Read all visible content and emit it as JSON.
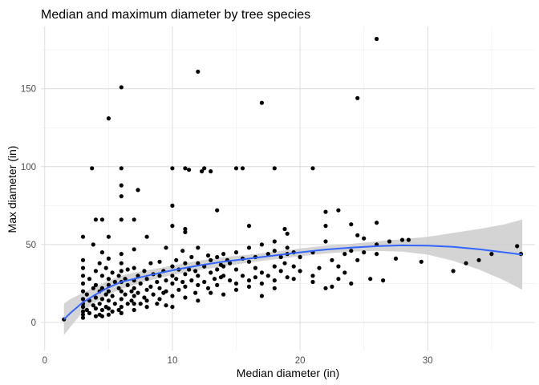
{
  "chart_data": {
    "type": "scatter",
    "title": "Median and maximum diameter by tree species",
    "xlabel": "Median diameter (in)",
    "ylabel": "Max diameter (in)",
    "xlim": [
      -0.3,
      38.4
    ],
    "ylim": [
      -18,
      190
    ],
    "x_ticks": [
      0,
      10,
      20,
      30
    ],
    "y_ticks": [
      0,
      50,
      100,
      150
    ],
    "grid": true,
    "legend": "none",
    "colors": {
      "points": "#000000",
      "smooth_line": "#3366ff",
      "confidence_band": "#cccccc",
      "grid_major": "#dcdcdc",
      "grid_minor": "#ececec"
    },
    "smooth": {
      "method": "loess",
      "x": [
        1.5,
        2,
        3,
        4,
        5,
        6,
        7,
        8,
        10,
        12,
        14,
        16,
        18,
        20,
        22,
        24,
        26,
        28,
        30,
        32,
        34,
        36,
        37.4
      ],
      "y": [
        2,
        6,
        13,
        18,
        22.5,
        26,
        28,
        30,
        33.5,
        36.5,
        39,
        41,
        43,
        45,
        46.8,
        48,
        49,
        49.5,
        49.3,
        48.5,
        47,
        45,
        43.5
      ],
      "ci_lower": [
        -8,
        -3,
        7,
        13,
        18,
        21.5,
        24,
        26.5,
        30.5,
        33.5,
        36,
        38.5,
        40.5,
        42.5,
        44.3,
        45.5,
        46,
        45.5,
        43.5,
        39.5,
        34,
        27,
        21
      ],
      "ci_upper": [
        12,
        15,
        19,
        23,
        27,
        30,
        32,
        33.5,
        36.5,
        39.5,
        42,
        43.5,
        45.5,
        47.5,
        49.3,
        50.5,
        52,
        53.5,
        55,
        57.5,
        60,
        63,
        66
      ]
    },
    "points": [
      {
        "x": 1.5,
        "y": 2
      },
      {
        "x": 3,
        "y": 55
      },
      {
        "x": 3,
        "y": 40
      },
      {
        "x": 3,
        "y": 35
      },
      {
        "x": 3,
        "y": 30
      },
      {
        "x": 3,
        "y": 25
      },
      {
        "x": 3,
        "y": 20
      },
      {
        "x": 3,
        "y": 15
      },
      {
        "x": 3,
        "y": 12
      },
      {
        "x": 3,
        "y": 10
      },
      {
        "x": 3,
        "y": 7
      },
      {
        "x": 3,
        "y": 5
      },
      {
        "x": 3,
        "y": 3
      },
      {
        "x": 3.3,
        "y": 18
      },
      {
        "x": 3.3,
        "y": 8
      },
      {
        "x": 3.5,
        "y": 28
      },
      {
        "x": 3.5,
        "y": 14
      },
      {
        "x": 3.5,
        "y": 6
      },
      {
        "x": 3.7,
        "y": 99
      },
      {
        "x": 3.8,
        "y": 50
      },
      {
        "x": 3.8,
        "y": 22
      },
      {
        "x": 3.8,
        "y": 11
      },
      {
        "x": 4,
        "y": 66
      },
      {
        "x": 4,
        "y": 33
      },
      {
        "x": 4,
        "y": 24
      },
      {
        "x": 4,
        "y": 16
      },
      {
        "x": 4,
        "y": 9
      },
      {
        "x": 4,
        "y": 4
      },
      {
        "x": 4.3,
        "y": 38
      },
      {
        "x": 4.3,
        "y": 20
      },
      {
        "x": 4.3,
        "y": 12
      },
      {
        "x": 4.3,
        "y": 5
      },
      {
        "x": 4.5,
        "y": 66
      },
      {
        "x": 4.5,
        "y": 45
      },
      {
        "x": 4.5,
        "y": 30
      },
      {
        "x": 4.5,
        "y": 22
      },
      {
        "x": 4.5,
        "y": 15
      },
      {
        "x": 4.5,
        "y": 8
      },
      {
        "x": 4.5,
        "y": 4
      },
      {
        "x": 4.8,
        "y": 35
      },
      {
        "x": 4.8,
        "y": 18
      },
      {
        "x": 4.8,
        "y": 10
      },
      {
        "x": 5,
        "y": 131
      },
      {
        "x": 5,
        "y": 55
      },
      {
        "x": 5,
        "y": 41
      },
      {
        "x": 5,
        "y": 28
      },
      {
        "x": 5,
        "y": 24
      },
      {
        "x": 5,
        "y": 20
      },
      {
        "x": 5,
        "y": 14
      },
      {
        "x": 5,
        "y": 9
      },
      {
        "x": 5,
        "y": 5
      },
      {
        "x": 5.3,
        "y": 32
      },
      {
        "x": 5.3,
        "y": 17
      },
      {
        "x": 5.3,
        "y": 7
      },
      {
        "x": 5.5,
        "y": 26
      },
      {
        "x": 5.5,
        "y": 12
      },
      {
        "x": 5.8,
        "y": 30
      },
      {
        "x": 5.8,
        "y": 22
      },
      {
        "x": 5.8,
        "y": 8
      },
      {
        "x": 6,
        "y": 151
      },
      {
        "x": 6,
        "y": 99
      },
      {
        "x": 6,
        "y": 81
      },
      {
        "x": 6,
        "y": 88
      },
      {
        "x": 6,
        "y": 66
      },
      {
        "x": 6,
        "y": 44
      },
      {
        "x": 6,
        "y": 38
      },
      {
        "x": 6,
        "y": 33
      },
      {
        "x": 6,
        "y": 26
      },
      {
        "x": 6,
        "y": 20
      },
      {
        "x": 6,
        "y": 15
      },
      {
        "x": 6,
        "y": 10
      },
      {
        "x": 6,
        "y": 6
      },
      {
        "x": 6.3,
        "y": 28
      },
      {
        "x": 6.3,
        "y": 18
      },
      {
        "x": 6.5,
        "y": 34
      },
      {
        "x": 6.5,
        "y": 24
      },
      {
        "x": 6.5,
        "y": 12
      },
      {
        "x": 6.8,
        "y": 20
      },
      {
        "x": 6.8,
        "y": 14
      },
      {
        "x": 7,
        "y": 66
      },
      {
        "x": 7,
        "y": 47
      },
      {
        "x": 7,
        "y": 35
      },
      {
        "x": 7,
        "y": 27
      },
      {
        "x": 7,
        "y": 22
      },
      {
        "x": 7,
        "y": 17
      },
      {
        "x": 7,
        "y": 12
      },
      {
        "x": 7,
        "y": 8
      },
      {
        "x": 7.3,
        "y": 85
      },
      {
        "x": 7.3,
        "y": 30
      },
      {
        "x": 7.3,
        "y": 19
      },
      {
        "x": 7.5,
        "y": 25
      },
      {
        "x": 7.5,
        "y": 12
      },
      {
        "x": 7.8,
        "y": 33
      },
      {
        "x": 7.8,
        "y": 16
      },
      {
        "x": 8,
        "y": 55
      },
      {
        "x": 8,
        "y": 28
      },
      {
        "x": 8,
        "y": 21
      },
      {
        "x": 8,
        "y": 14
      },
      {
        "x": 8,
        "y": 10
      },
      {
        "x": 8.3,
        "y": 38
      },
      {
        "x": 8.3,
        "y": 23
      },
      {
        "x": 8.5,
        "y": 31
      },
      {
        "x": 8.5,
        "y": 18
      },
      {
        "x": 8.8,
        "y": 26
      },
      {
        "x": 8.8,
        "y": 12
      },
      {
        "x": 9,
        "y": 39
      },
      {
        "x": 9,
        "y": 30
      },
      {
        "x": 9,
        "y": 22
      },
      {
        "x": 9,
        "y": 15
      },
      {
        "x": 9.3,
        "y": 33
      },
      {
        "x": 9.3,
        "y": 19
      },
      {
        "x": 9.5,
        "y": 48
      },
      {
        "x": 9.5,
        "y": 27
      },
      {
        "x": 9.5,
        "y": 20
      },
      {
        "x": 9.5,
        "y": 11
      },
      {
        "x": 10,
        "y": 99
      },
      {
        "x": 10,
        "y": 75
      },
      {
        "x": 10,
        "y": 62
      },
      {
        "x": 10,
        "y": 36
      },
      {
        "x": 10,
        "y": 30
      },
      {
        "x": 10,
        "y": 25
      },
      {
        "x": 10,
        "y": 17
      },
      {
        "x": 10,
        "y": 10
      },
      {
        "x": 10.3,
        "y": 40
      },
      {
        "x": 10.3,
        "y": 28
      },
      {
        "x": 10.5,
        "y": 34
      },
      {
        "x": 10.5,
        "y": 21
      },
      {
        "x": 10.8,
        "y": 46
      },
      {
        "x": 10.8,
        "y": 26
      },
      {
        "x": 11,
        "y": 99
      },
      {
        "x": 11,
        "y": 60
      },
      {
        "x": 11,
        "y": 58
      },
      {
        "x": 11,
        "y": 38
      },
      {
        "x": 11,
        "y": 31
      },
      {
        "x": 11,
        "y": 23
      },
      {
        "x": 11,
        "y": 16
      },
      {
        "x": 11.3,
        "y": 98
      },
      {
        "x": 11.3,
        "y": 34
      },
      {
        "x": 11.5,
        "y": 42
      },
      {
        "x": 11.5,
        "y": 27
      },
      {
        "x": 11.8,
        "y": 33
      },
      {
        "x": 11.8,
        "y": 19
      },
      {
        "x": 12,
        "y": 161
      },
      {
        "x": 12,
        "y": 48
      },
      {
        "x": 12,
        "y": 38
      },
      {
        "x": 12,
        "y": 30
      },
      {
        "x": 12,
        "y": 24
      },
      {
        "x": 12,
        "y": 14
      },
      {
        "x": 12.3,
        "y": 97
      },
      {
        "x": 12.5,
        "y": 99
      },
      {
        "x": 12.5,
        "y": 36
      },
      {
        "x": 12.5,
        "y": 26
      },
      {
        "x": 12.8,
        "y": 43
      },
      {
        "x": 12.8,
        "y": 22
      },
      {
        "x": 13,
        "y": 97
      },
      {
        "x": 13,
        "y": 40
      },
      {
        "x": 13,
        "y": 32
      },
      {
        "x": 13,
        "y": 19
      },
      {
        "x": 13.3,
        "y": 28
      },
      {
        "x": 13.5,
        "y": 72
      },
      {
        "x": 13.5,
        "y": 42
      },
      {
        "x": 13.5,
        "y": 34
      },
      {
        "x": 13.5,
        "y": 24
      },
      {
        "x": 13.8,
        "y": 37
      },
      {
        "x": 13.8,
        "y": 29
      },
      {
        "x": 14,
        "y": 44
      },
      {
        "x": 14,
        "y": 36
      },
      {
        "x": 14,
        "y": 30
      },
      {
        "x": 14,
        "y": 18
      },
      {
        "x": 14.3,
        "y": 40
      },
      {
        "x": 14.5,
        "y": 38
      },
      {
        "x": 14.5,
        "y": 27
      },
      {
        "x": 15,
        "y": 99
      },
      {
        "x": 15,
        "y": 45
      },
      {
        "x": 15,
        "y": 34
      },
      {
        "x": 15,
        "y": 25
      },
      {
        "x": 15,
        "y": 21
      },
      {
        "x": 15.5,
        "y": 99
      },
      {
        "x": 15.5,
        "y": 41
      },
      {
        "x": 15.5,
        "y": 30
      },
      {
        "x": 16,
        "y": 62
      },
      {
        "x": 16,
        "y": 48
      },
      {
        "x": 16,
        "y": 39
      },
      {
        "x": 16,
        "y": 27
      },
      {
        "x": 16,
        "y": 23
      },
      {
        "x": 16.5,
        "y": 42
      },
      {
        "x": 16.5,
        "y": 35
      },
      {
        "x": 16.5,
        "y": 29
      },
      {
        "x": 17,
        "y": 141
      },
      {
        "x": 17,
        "y": 50
      },
      {
        "x": 17,
        "y": 32
      },
      {
        "x": 17,
        "y": 25
      },
      {
        "x": 17,
        "y": 17
      },
      {
        "x": 17.5,
        "y": 44
      },
      {
        "x": 17.5,
        "y": 30
      },
      {
        "x": 18,
        "y": 99
      },
      {
        "x": 18,
        "y": 52
      },
      {
        "x": 18,
        "y": 46
      },
      {
        "x": 18,
        "y": 36
      },
      {
        "x": 18,
        "y": 27
      },
      {
        "x": 18,
        "y": 22
      },
      {
        "x": 18.5,
        "y": 42
      },
      {
        "x": 18.5,
        "y": 33
      },
      {
        "x": 18.8,
        "y": 60
      },
      {
        "x": 18.8,
        "y": 38
      },
      {
        "x": 19,
        "y": 57
      },
      {
        "x": 19,
        "y": 48
      },
      {
        "x": 19,
        "y": 44
      },
      {
        "x": 19,
        "y": 29
      },
      {
        "x": 19.5,
        "y": 45
      },
      {
        "x": 19.5,
        "y": 36
      },
      {
        "x": 19.5,
        "y": 28
      },
      {
        "x": 20,
        "y": 42
      },
      {
        "x": 20,
        "y": 33
      },
      {
        "x": 21,
        "y": 99
      },
      {
        "x": 21,
        "y": 45
      },
      {
        "x": 21,
        "y": 30
      },
      {
        "x": 21,
        "y": 26
      },
      {
        "x": 21.5,
        "y": 35
      },
      {
        "x": 22,
        "y": 71
      },
      {
        "x": 22,
        "y": 62
      },
      {
        "x": 22,
        "y": 52
      },
      {
        "x": 22,
        "y": 22
      },
      {
        "x": 22.5,
        "y": 40
      },
      {
        "x": 22.5,
        "y": 23
      },
      {
        "x": 23,
        "y": 72
      },
      {
        "x": 23,
        "y": 36
      },
      {
        "x": 23,
        "y": 28
      },
      {
        "x": 23.5,
        "y": 44
      },
      {
        "x": 23.5,
        "y": 32
      },
      {
        "x": 24,
        "y": 63
      },
      {
        "x": 24,
        "y": 46
      },
      {
        "x": 24,
        "y": 25
      },
      {
        "x": 24.5,
        "y": 144
      },
      {
        "x": 24.5,
        "y": 56
      },
      {
        "x": 24.5,
        "y": 40
      },
      {
        "x": 25,
        "y": 54
      },
      {
        "x": 25,
        "y": 45
      },
      {
        "x": 25.5,
        "y": 28
      },
      {
        "x": 26,
        "y": 182
      },
      {
        "x": 26,
        "y": 64
      },
      {
        "x": 26,
        "y": 50
      },
      {
        "x": 26,
        "y": 44
      },
      {
        "x": 26.5,
        "y": 27
      },
      {
        "x": 27,
        "y": 52
      },
      {
        "x": 27.5,
        "y": 41
      },
      {
        "x": 28,
        "y": 53
      },
      {
        "x": 28.5,
        "y": 53
      },
      {
        "x": 29.5,
        "y": 39
      },
      {
        "x": 32,
        "y": 33
      },
      {
        "x": 33,
        "y": 38
      },
      {
        "x": 34,
        "y": 40
      },
      {
        "x": 35,
        "y": 44
      },
      {
        "x": 37,
        "y": 49
      },
      {
        "x": 37.3,
        "y": 44
      }
    ]
  }
}
